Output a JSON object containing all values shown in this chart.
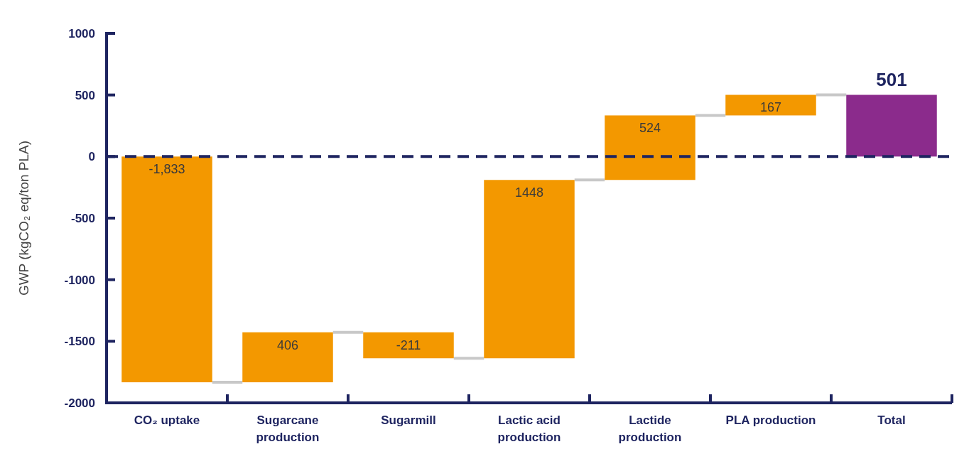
{
  "chart_data": {
    "type": "bar",
    "ylabel": "GWP (kgCO₂ eq/ton PLA)",
    "categories": [
      "CO₂ uptake",
      "Sugarcane production",
      "Sugarmill",
      "Lactic acid production",
      "Lactide production",
      "PLA production",
      "Total"
    ],
    "values": [
      -1833,
      406,
      -211,
      1448,
      524,
      167,
      501
    ],
    "base": [
      0,
      -1833,
      -1427,
      -1638,
      -190,
      334,
      0
    ],
    "colors": [
      "#f39800",
      "#f39800",
      "#f39800",
      "#f39800",
      "#f39800",
      "#f39800",
      "#8b2b8c"
    ],
    "value_labels": [
      "-1,833",
      "406",
      "-211",
      "1448",
      "524",
      "167",
      "501"
    ],
    "ylim": [
      -2000,
      1000
    ],
    "yticks": [
      -2000,
      -1500,
      -1000,
      -500,
      0,
      500,
      1000
    ],
    "ref_lines": [
      {
        "axis": "y",
        "value": 0,
        "color": "#1e2460",
        "line_style": "dashed"
      }
    ],
    "grid": false
  }
}
